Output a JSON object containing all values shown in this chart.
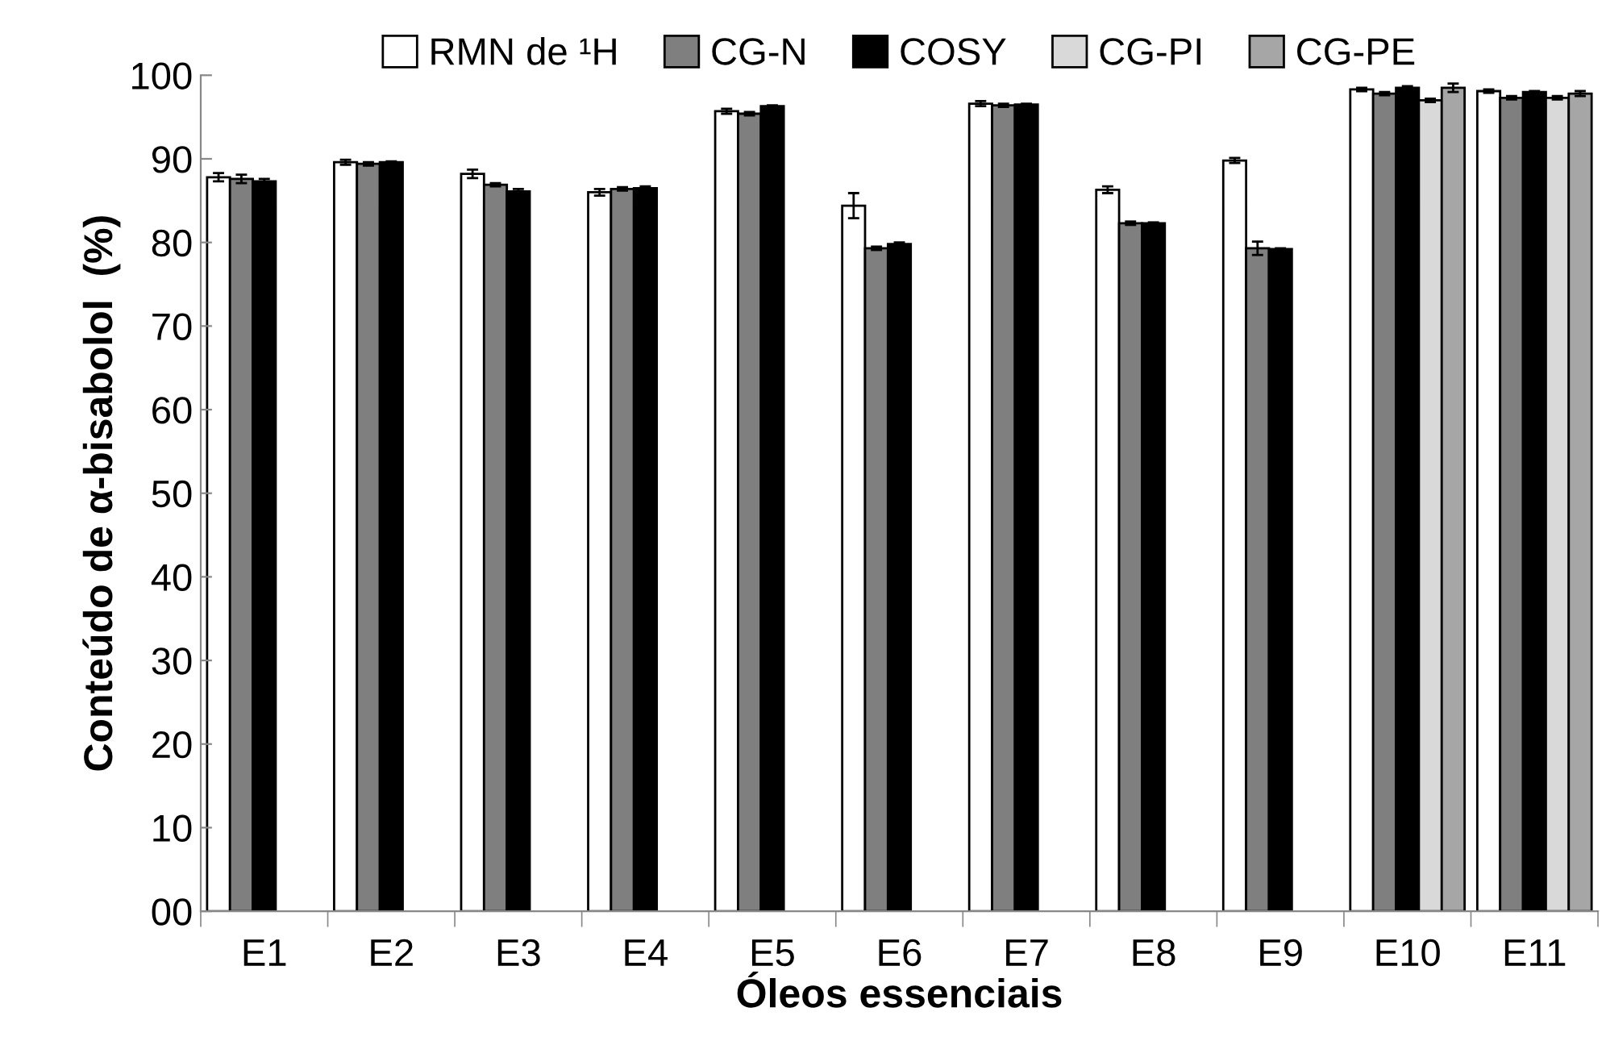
{
  "chart_data": {
    "type": "bar",
    "xlabel": "Óleos essenciais",
    "ylabel": "Conteúdo de α-bisabolol  (%)",
    "categories": [
      "E1",
      "E2",
      "E3",
      "E4",
      "E5",
      "E6",
      "E7",
      "E8",
      "E9",
      "E10",
      "E11"
    ],
    "series": [
      {
        "name": "RMN de ¹H",
        "color": "#ffffff",
        "values": [
          87.8,
          89.6,
          88.2,
          86.0,
          95.7,
          84.4,
          96.6,
          86.3,
          89.8,
          98.3,
          98.1
        ],
        "errors": [
          0.5,
          0.3,
          0.5,
          0.4,
          0.3,
          1.5,
          0.3,
          0.4,
          0.3,
          0.2,
          0.2
        ]
      },
      {
        "name": "CG-N",
        "color": "#7f7f7f",
        "values": [
          87.6,
          89.4,
          86.9,
          86.4,
          95.4,
          79.3,
          96.4,
          82.3,
          79.3,
          97.8,
          97.3
        ],
        "errors": [
          0.5,
          0.2,
          0.2,
          0.2,
          0.2,
          0.2,
          0.2,
          0.2,
          0.8,
          0.2,
          0.2
        ]
      },
      {
        "name": "COSY",
        "color": "#000000",
        "values": [
          87.3,
          89.6,
          86.1,
          86.5,
          96.3,
          79.8,
          96.5,
          82.3,
          79.2,
          98.5,
          98.0
        ],
        "errors": [
          0.3,
          0.1,
          0.3,
          0.2,
          0.1,
          0.2,
          0.1,
          0.1,
          0.1,
          0.2,
          0.1
        ]
      },
      {
        "name": "CG-PI",
        "color": "#d9d9d9",
        "values": [
          null,
          null,
          null,
          null,
          null,
          null,
          null,
          null,
          null,
          97.0,
          97.3
        ],
        "errors": [
          null,
          null,
          null,
          null,
          null,
          null,
          null,
          null,
          null,
          0.2,
          0.2
        ]
      },
      {
        "name": "CG-PE",
        "color": "#a6a6a6",
        "values": [
          null,
          null,
          null,
          null,
          null,
          null,
          null,
          null,
          null,
          98.5,
          97.8
        ],
        "errors": [
          null,
          null,
          null,
          null,
          null,
          null,
          null,
          null,
          null,
          0.5,
          0.3
        ]
      }
    ],
    "ylim": [
      0,
      100
    ],
    "yticks": [
      {
        "value": 0,
        "label": "00"
      },
      10,
      20,
      30,
      40,
      50,
      60,
      70,
      80,
      90,
      100
    ],
    "grid": false,
    "legend": "top"
  }
}
